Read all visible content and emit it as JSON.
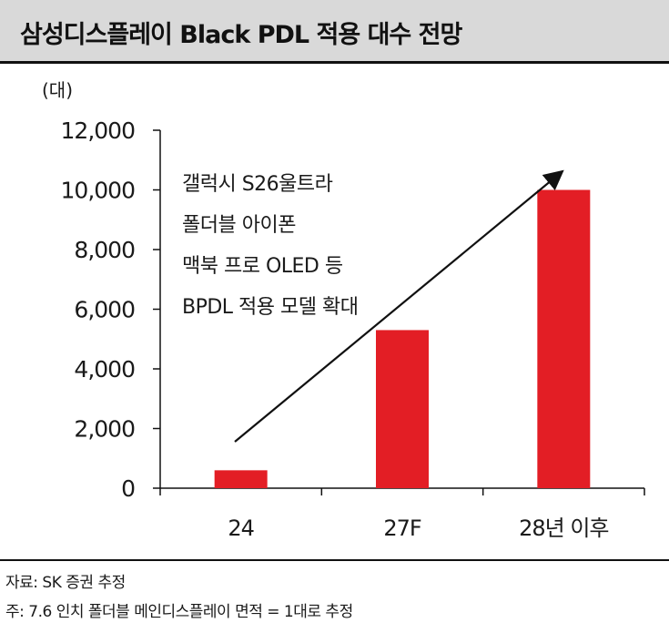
{
  "header": {
    "title": "삼성디스플레이 Black PDL 적용 대수 전망"
  },
  "chart_data": {
    "type": "bar",
    "title": "삼성디스플레이 Black PDL 적용 대수 전망",
    "unit_label": "(대)",
    "categories": [
      "24",
      "27F",
      "28년 이후"
    ],
    "series": [
      {
        "values": [
          600,
          5300,
          10000
        ]
      }
    ],
    "ylim": [
      0,
      12000
    ],
    "yticks": [
      0,
      2000,
      4000,
      6000,
      8000,
      10000,
      12000
    ],
    "ytick_labels": [
      "0",
      "2,000",
      "4,000",
      "6,000",
      "8,000",
      "10,000",
      "12,000"
    ],
    "grid": false,
    "bar_color": "#e31e25",
    "annotation": {
      "lines": [
        "갤럭시 S26울트라",
        "폴더블 아이폰",
        "맥북 프로 OLED 등",
        "BPDL 적용 모델 확대"
      ],
      "arrow": "trend arrow rising from first bar toward last bar"
    }
  },
  "notes": {
    "source": "자료: SK 증권 추정",
    "footnote": "주: 7.6 인치 폴더블 메인디스플레이 면적 = 1대로 추정"
  }
}
